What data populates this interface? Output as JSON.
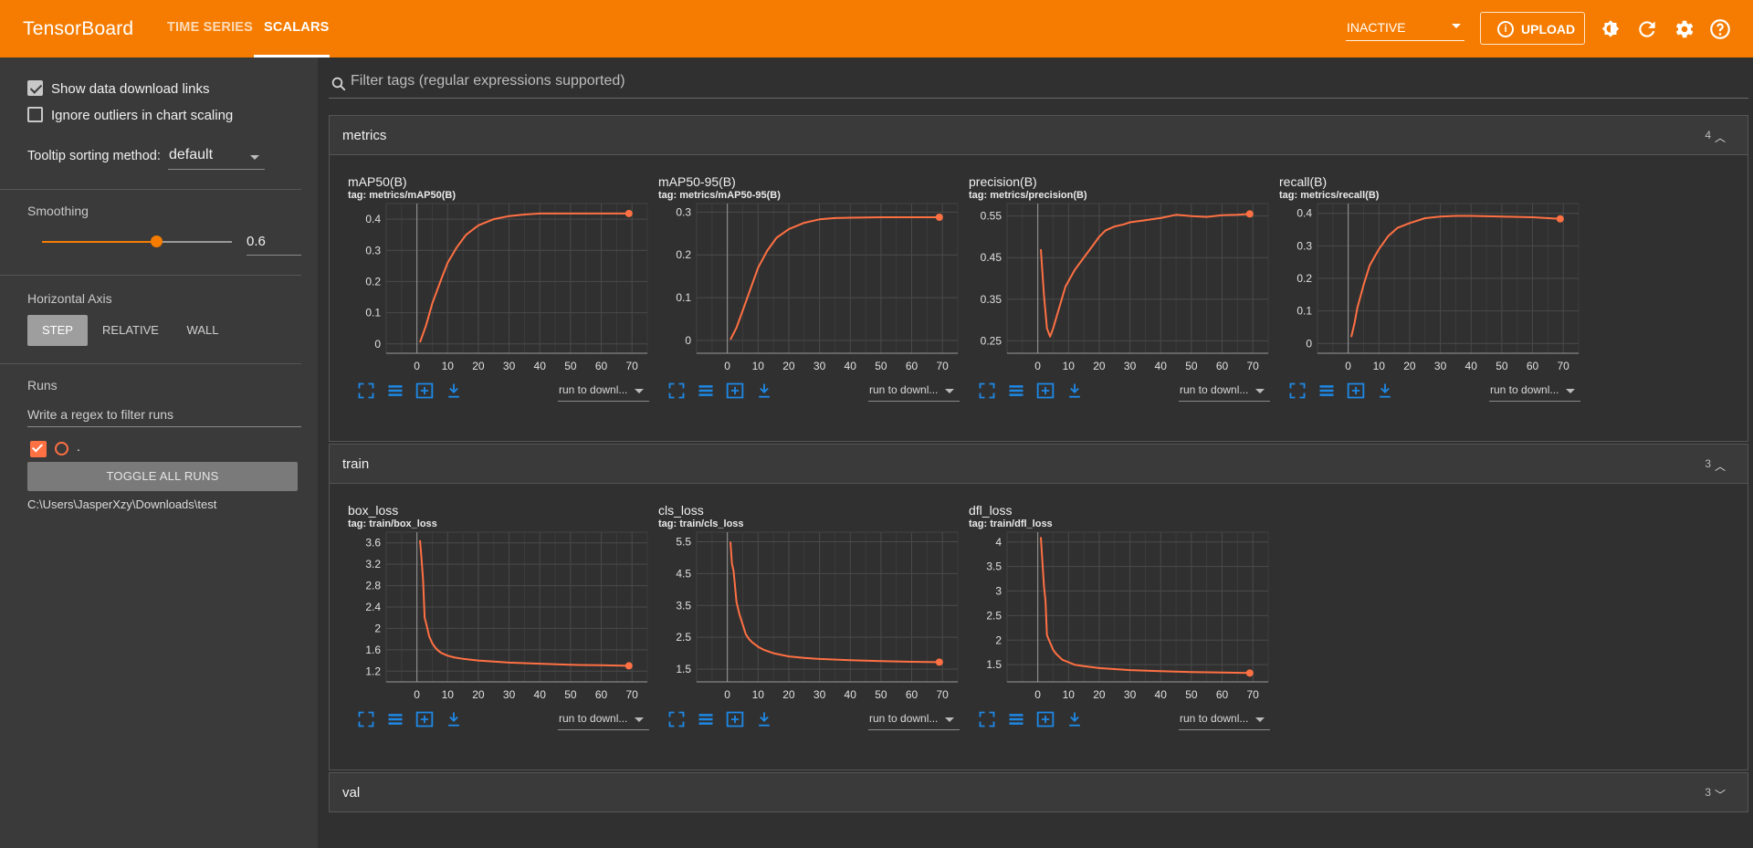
{
  "app": {
    "title": "TensorBoard",
    "tabs": [
      {
        "label": "TIME SERIES",
        "active": false
      },
      {
        "label": "SCALARS",
        "active": true
      }
    ],
    "run_status": "INACTIVE",
    "upload_label": "UPLOAD",
    "toolbar_icons": [
      "theme-icon",
      "refresh-icon",
      "settings-icon",
      "help-icon"
    ]
  },
  "colors": {
    "accent": "#f57c00",
    "line": "#ff7043",
    "icon_blue": "#1e88e5",
    "background": "#303030"
  },
  "sidebar": {
    "show_download_links": {
      "label": "Show data download links",
      "checked": true
    },
    "ignore_outliers": {
      "label": "Ignore outliers in chart scaling",
      "checked": false
    },
    "tooltip_sorting": {
      "label": "Tooltip sorting method:",
      "value": "default"
    },
    "smoothing": {
      "label": "Smoothing",
      "value": "0.6",
      "fraction": 0.6
    },
    "horizontal_axis": {
      "label": "Horizontal Axis",
      "options": [
        "STEP",
        "RELATIVE",
        "WALL"
      ],
      "selected": "STEP"
    },
    "runs": {
      "label": "Runs",
      "filter_placeholder": "Write a regex to filter runs",
      "run_name": ".",
      "toggle_label": "TOGGLE ALL RUNS",
      "log_dir": "C:\\Users\\JasperXzy\\Downloads\\test"
    }
  },
  "main": {
    "filter_placeholder": "Filter tags (regular expressions supported)",
    "download_select": "run to downl...",
    "sections": [
      {
        "title": "metrics",
        "count": "4",
        "expanded": true
      },
      {
        "title": "train",
        "count": "3",
        "expanded": true
      },
      {
        "title": "val",
        "count": "3",
        "expanded": false
      }
    ]
  },
  "chart_data": [
    {
      "type": "line",
      "title": "mAP50(B)",
      "tag": "tag: metrics/mAP50(B)",
      "xlim": [
        -10,
        75
      ],
      "ylim": [
        -0.03,
        0.45
      ],
      "xticks": [
        "0",
        "10",
        "20",
        "30",
        "40",
        "50",
        "60",
        "70"
      ],
      "yticks": [
        "0",
        "0.1",
        "0.2",
        "0.3",
        "0.4"
      ],
      "x": [
        1,
        3,
        5,
        8,
        10,
        13,
        16,
        20,
        25,
        30,
        35,
        40,
        50,
        60,
        69
      ],
      "y": [
        0.005,
        0.06,
        0.13,
        0.21,
        0.26,
        0.31,
        0.35,
        0.38,
        0.4,
        0.41,
        0.415,
        0.418,
        0.418,
        0.418,
        0.418
      ]
    },
    {
      "type": "line",
      "title": "mAP50-95(B)",
      "tag": "tag: metrics/mAP50-95(B)",
      "xlim": [
        -10,
        75
      ],
      "ylim": [
        -0.03,
        0.32
      ],
      "xticks": [
        "0",
        "10",
        "20",
        "30",
        "40",
        "50",
        "60",
        "70"
      ],
      "yticks": [
        "0",
        "0.1",
        "0.2",
        "0.3"
      ],
      "x": [
        1,
        3,
        5,
        8,
        10,
        13,
        16,
        20,
        25,
        30,
        35,
        40,
        50,
        60,
        69
      ],
      "y": [
        0.002,
        0.03,
        0.07,
        0.13,
        0.17,
        0.21,
        0.24,
        0.26,
        0.275,
        0.283,
        0.286,
        0.287,
        0.288,
        0.288,
        0.288
      ]
    },
    {
      "type": "line",
      "title": "precision(B)",
      "tag": "tag: metrics/precision(B)",
      "xlim": [
        -10,
        75
      ],
      "ylim": [
        0.22,
        0.58
      ],
      "xticks": [
        "0",
        "10",
        "20",
        "30",
        "40",
        "50",
        "60",
        "70"
      ],
      "yticks": [
        "0.25",
        "0.35",
        "0.45",
        "0.55"
      ],
      "x": [
        1,
        2,
        3,
        4,
        5,
        7,
        9,
        12,
        15,
        18,
        20,
        22,
        25,
        28,
        30,
        35,
        40,
        45,
        50,
        55,
        60,
        65,
        69
      ],
      "y": [
        0.47,
        0.36,
        0.28,
        0.26,
        0.28,
        0.33,
        0.38,
        0.42,
        0.45,
        0.48,
        0.5,
        0.515,
        0.525,
        0.53,
        0.535,
        0.54,
        0.545,
        0.553,
        0.55,
        0.548,
        0.552,
        0.553,
        0.555
      ]
    },
    {
      "type": "line",
      "title": "recall(B)",
      "tag": "tag: metrics/recall(B)",
      "xlim": [
        -10,
        75
      ],
      "ylim": [
        -0.03,
        0.43
      ],
      "xticks": [
        "0",
        "10",
        "20",
        "30",
        "40",
        "50",
        "60",
        "70"
      ],
      "yticks": [
        "0",
        "0.1",
        "0.2",
        "0.3",
        "0.4"
      ],
      "x": [
        1,
        2,
        3,
        5,
        7,
        10,
        13,
        16,
        20,
        25,
        30,
        35,
        40,
        50,
        60,
        69
      ],
      "y": [
        0.02,
        0.06,
        0.11,
        0.18,
        0.24,
        0.29,
        0.33,
        0.355,
        0.37,
        0.385,
        0.39,
        0.392,
        0.392,
        0.39,
        0.388,
        0.383
      ]
    },
    {
      "type": "line",
      "title": "box_loss",
      "tag": "tag: train/box_loss",
      "xlim": [
        -10,
        75
      ],
      "ylim": [
        1.0,
        3.8
      ],
      "xticks": [
        "0",
        "10",
        "20",
        "30",
        "40",
        "50",
        "60",
        "70"
      ],
      "yticks": [
        "1.2",
        "1.6",
        "2",
        "2.4",
        "2.8",
        "3.2",
        "3.6"
      ],
      "x": [
        1,
        1.5,
        2,
        2.5,
        3,
        4,
        5,
        6,
        7,
        8,
        10,
        12,
        15,
        20,
        25,
        30,
        35,
        40,
        50,
        60,
        69
      ],
      "y": [
        3.65,
        3.3,
        2.9,
        2.2,
        2.1,
        1.85,
        1.72,
        1.64,
        1.58,
        1.54,
        1.49,
        1.46,
        1.43,
        1.4,
        1.38,
        1.36,
        1.35,
        1.34,
        1.32,
        1.31,
        1.3
      ]
    },
    {
      "type": "line",
      "title": "cls_loss",
      "tag": "tag: train/cls_loss",
      "xlim": [
        -10,
        75
      ],
      "ylim": [
        1.1,
        5.8
      ],
      "xticks": [
        "0",
        "10",
        "20",
        "30",
        "40",
        "50",
        "60",
        "70"
      ],
      "yticks": [
        "1.5",
        "2.5",
        "3.5",
        "4.5",
        "5.5"
      ],
      "x": [
        1,
        1.5,
        2,
        3,
        4,
        5,
        6,
        7,
        8,
        10,
        12,
        15,
        20,
        25,
        30,
        40,
        50,
        60,
        69
      ],
      "y": [
        5.5,
        4.8,
        4.6,
        3.6,
        3.2,
        2.9,
        2.6,
        2.45,
        2.35,
        2.2,
        2.1,
        2.0,
        1.9,
        1.85,
        1.82,
        1.78,
        1.75,
        1.73,
        1.72
      ]
    },
    {
      "type": "line",
      "title": "dfl_loss",
      "tag": "tag: train/dfl_loss",
      "xlim": [
        -10,
        75
      ],
      "ylim": [
        1.15,
        4.2
      ],
      "xticks": [
        "0",
        "10",
        "20",
        "30",
        "40",
        "50",
        "60",
        "70"
      ],
      "yticks": [
        "1.5",
        "2",
        "2.5",
        "3",
        "3.5",
        "4"
      ],
      "x": [
        1,
        1.5,
        2,
        2.5,
        3,
        4,
        5,
        6,
        7,
        8,
        10,
        12,
        15,
        20,
        25,
        30,
        40,
        50,
        60,
        69
      ],
      "y": [
        4.1,
        3.6,
        3.1,
        2.8,
        2.1,
        1.95,
        1.8,
        1.72,
        1.66,
        1.6,
        1.55,
        1.5,
        1.47,
        1.43,
        1.41,
        1.39,
        1.37,
        1.35,
        1.34,
        1.33
      ]
    }
  ]
}
